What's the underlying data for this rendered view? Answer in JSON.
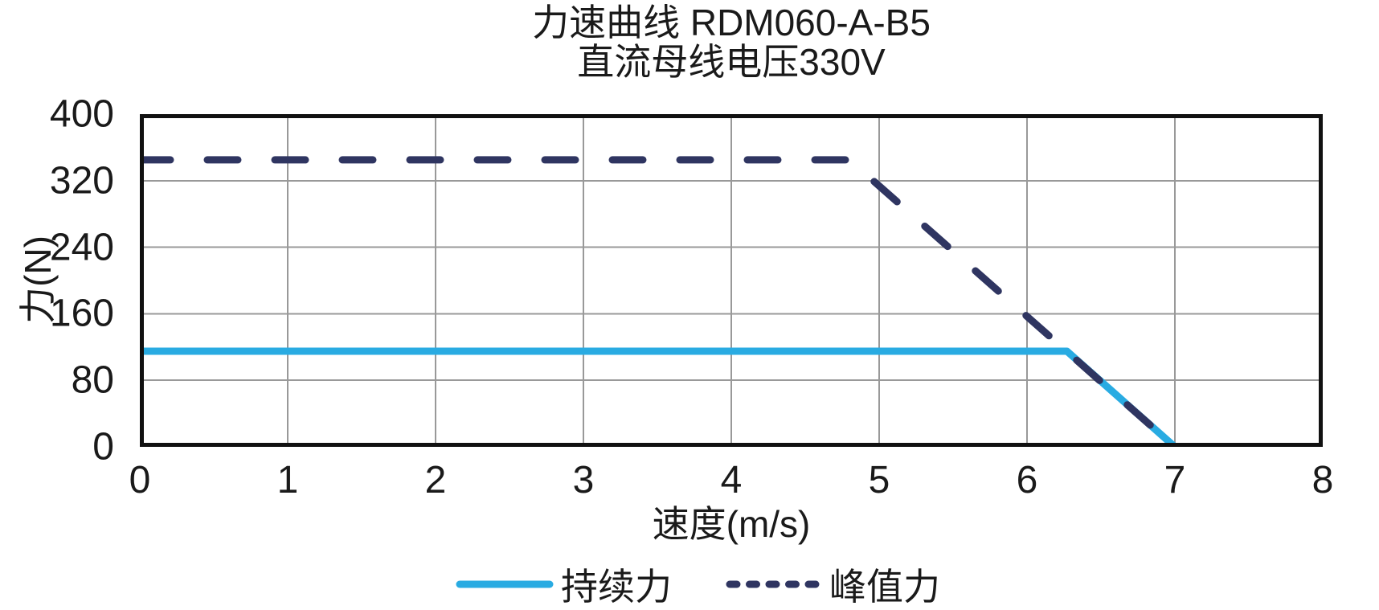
{
  "figure": {
    "background": "#ffffff"
  },
  "chart_data": {
    "type": "line",
    "title": "力速曲线 RDM060-A-B5",
    "subtitle": "直流母线电压330V",
    "xlabel": "速度(m/s)",
    "ylabel": "力(N)",
    "xlim": [
      0,
      8
    ],
    "ylim": [
      0,
      400
    ],
    "xticks": [
      0,
      1,
      2,
      3,
      4,
      5,
      6,
      7,
      8
    ],
    "yticks": [
      0,
      80,
      160,
      240,
      320,
      400
    ],
    "grid": true,
    "legend_position": "bottom",
    "series": [
      {
        "name": "持续力",
        "style": "solid",
        "color": "#29ABE2",
        "points": [
          [
            0,
            115
          ],
          [
            6.27,
            115
          ],
          [
            7,
            0
          ]
        ]
      },
      {
        "name": "峰值力",
        "style": "dashed",
        "color": "#2F3561",
        "points": [
          [
            0,
            345
          ],
          [
            4.8,
            345
          ],
          [
            7,
            0
          ]
        ]
      }
    ],
    "colors": {
      "frame": "#111111",
      "grid": "#999999",
      "text": "#1a1a1a"
    }
  }
}
